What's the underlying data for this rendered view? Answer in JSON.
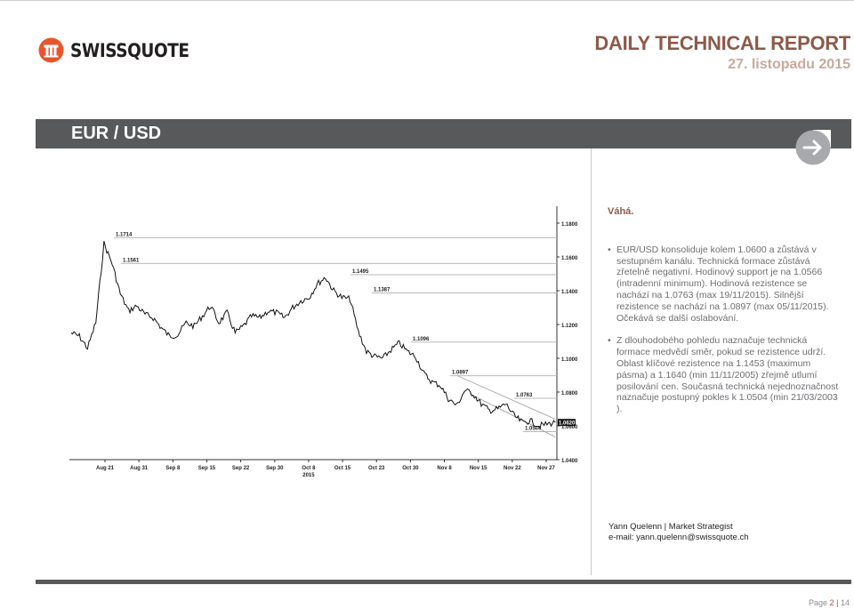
{
  "header": {
    "brand": "SWISSQUOTE",
    "report_title": "DAILY TECHNICAL REPORT",
    "report_date": "27. listopadu 2015"
  },
  "banner": {
    "pair": "EUR / USD"
  },
  "analysis": {
    "rating": "Váhá.",
    "bullets": [
      "EUR/USD konsoliduje kolem 1.0600 a zůstává v sestupném kanálu. Technická formace zůstává zřetelně negativní. Hodinový support je na 1.0566 (intradenní minimum). Hodinová rezistence se nachází na 1.0763 (max 19/11/2015). Silnější rezistence se nachází na 1.0897 (max 05/11/2015). Očekává se další oslabování.",
      "Z dlouhodobého pohledu naznačuje technická formace medvědí směr, pokud se rezistence udrží. Oblast klíčové rezistence na 1.1453 (maximum pásma) a 1.1640 (min 11/11/2005) zřejmě utlumí posilování cen. Současná technická nejednoznačnost naznačuje postupný pokles k 1.0504 (min 21/03/2003 )."
    ]
  },
  "author": {
    "name_line": "Yann Quelenn | Market Strategist",
    "email_line": "e-mail: yann.quelenn@swissquote.ch"
  },
  "footer": {
    "page_label": "Page",
    "separator": "|",
    "page": "2",
    "total": "14"
  },
  "colors": {
    "brand": "#8c5a49",
    "banner": "#58595b",
    "logo_orange": "#e8552d"
  },
  "icons": {
    "logo": "swissquote-logo-icon",
    "arrow": "arrow-right-icon"
  },
  "chart_data": {
    "type": "line",
    "instrument": "EUR/USD",
    "x_ticks": [
      "Aug 21",
      "Aug 31",
      "Sep 8",
      "Sep 15",
      "Sep 22",
      "Sep 30",
      "Oct 8",
      "Oct 15",
      "Oct 23",
      "Oct 30",
      "Nov 8",
      "Nov 15",
      "Nov 22",
      "Nov 27"
    ],
    "year_label": "2015",
    "y_ticks": [
      "1.1800",
      "1.1600",
      "1.1400",
      "1.1200",
      "1.1000",
      "1.0800",
      "1.0600",
      "1.0400"
    ],
    "ylim": [
      1.04,
      1.19
    ],
    "levels": [
      {
        "label": "1.1714",
        "value": 1.1714
      },
      {
        "label": "1.1561",
        "value": 1.1561
      },
      {
        "label": "1.1495",
        "value": 1.1495
      },
      {
        "label": "1.1387",
        "value": 1.1387
      },
      {
        "label": "1.1096",
        "value": 1.1096
      },
      {
        "label": "1.0897",
        "value": 1.0897
      },
      {
        "label": "1.0763",
        "value": 1.0763
      },
      {
        "label": "1.0566",
        "value": 1.0566
      }
    ],
    "current_price": "1.0620",
    "series": [
      {
        "values": [
          1.115,
          1.113,
          1.106,
          1.121,
          1.168,
          1.156,
          1.138,
          1.128,
          1.131,
          1.126,
          1.124,
          1.118,
          1.113,
          1.114,
          1.121,
          1.119,
          1.125,
          1.131,
          1.121,
          1.127,
          1.115,
          1.119,
          1.125,
          1.124,
          1.128,
          1.127,
          1.124,
          1.13,
          1.134,
          1.136,
          1.144,
          1.148,
          1.14,
          1.136,
          1.135,
          1.116,
          1.104,
          1.101,
          1.1,
          1.105,
          1.109,
          1.104,
          1.101,
          1.091,
          1.086,
          1.084,
          1.076,
          1.072,
          1.081,
          1.079,
          1.073,
          1.069,
          1.07,
          1.073,
          1.066,
          1.062,
          1.063,
          1.06,
          1.061,
          1.062
        ]
      }
    ]
  }
}
